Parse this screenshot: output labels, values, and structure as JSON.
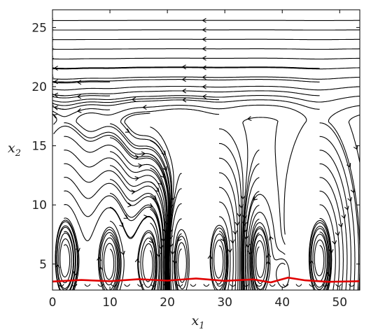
{
  "chart_data": {
    "type": "streamline",
    "title": "",
    "xlabel": "x",
    "xlabel_sub": "1",
    "ylabel": "x",
    "ylabel_sub": "2",
    "xlim": [
      0,
      53.5
    ],
    "ylim": [
      2.8,
      26.5
    ],
    "x_ticks": [
      0,
      10,
      20,
      30,
      40,
      50
    ],
    "y_ticks": [
      5,
      10,
      15,
      20,
      25
    ],
    "grid": false,
    "legend": "none",
    "line_color": "#000000",
    "interface_color": "#e00000",
    "vortex_centers": [
      {
        "x": 2,
        "y": 5.4,
        "height": 19,
        "half_width": 4.3,
        "rot": -1
      },
      {
        "x": 10,
        "y": 5.1,
        "height": 18,
        "half_width": 4.0,
        "rot": -1
      },
      {
        "x": 17,
        "y": 5.0,
        "height": 15,
        "half_width": 3.4,
        "rot": -1
      },
      {
        "x": 22.5,
        "y": 5.0,
        "height": 9,
        "half_width": 2.2,
        "rot": 1
      },
      {
        "x": 29,
        "y": 5.3,
        "height": 16,
        "half_width": 4.0,
        "rot": -1
      },
      {
        "x": 36,
        "y": 5.3,
        "height": 11,
        "half_width": 2.8,
        "rot": 1
      },
      {
        "x": 40.5,
        "y": 4.1,
        "height": 4,
        "half_width": 1.6,
        "rot": 1
      },
      {
        "x": 46.5,
        "y": 5.4,
        "height": 19,
        "half_width": 5.0,
        "rot": -1
      }
    ],
    "interface": {
      "x": [
        0,
        5,
        10,
        15,
        20,
        25,
        30,
        35,
        38,
        41,
        44,
        48,
        53.5
      ],
      "y": [
        3.52,
        3.65,
        3.55,
        3.72,
        3.6,
        3.78,
        3.58,
        3.7,
        3.45,
        3.85,
        3.62,
        3.5,
        3.55
      ]
    }
  }
}
